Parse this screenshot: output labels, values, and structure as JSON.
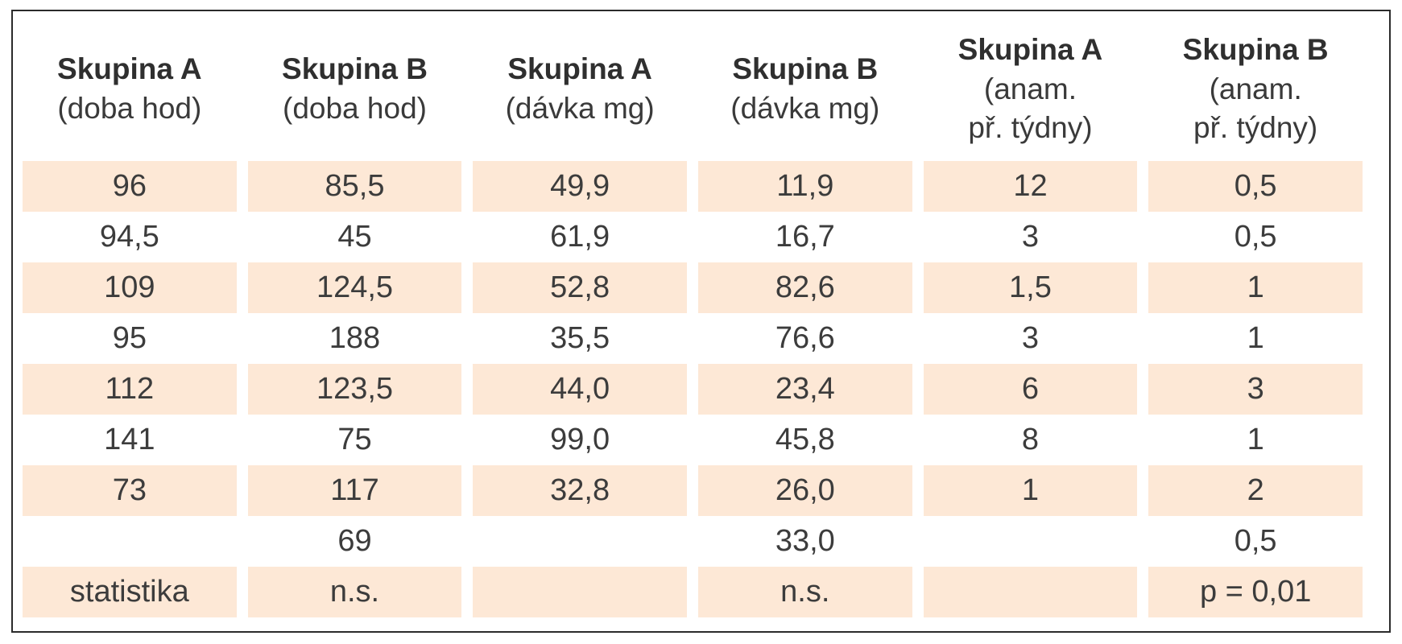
{
  "table": {
    "headers": [
      {
        "title": "Skupina A",
        "sub": [
          "(doba hod)"
        ]
      },
      {
        "title": "Skupina B",
        "sub": [
          "(doba hod)"
        ]
      },
      {
        "title": "Skupina A",
        "sub": [
          "(dávka mg)"
        ]
      },
      {
        "title": "Skupina B",
        "sub": [
          "(dávka mg)"
        ]
      },
      {
        "title": "Skupina A",
        "sub": [
          "(anam.",
          "př. týdny)"
        ]
      },
      {
        "title": "Skupina B",
        "sub": [
          "(anam.",
          "př. týdny)"
        ]
      }
    ],
    "rows": [
      [
        "96",
        "85,5",
        "49,9",
        "11,9",
        "12",
        "0,5"
      ],
      [
        "94,5",
        "45",
        "61,9",
        "16,7",
        "3",
        "0,5"
      ],
      [
        "109",
        "124,5",
        "52,8",
        "82,6",
        "1,5",
        "1"
      ],
      [
        "95",
        "188",
        "35,5",
        "76,6",
        "3",
        "1"
      ],
      [
        "112",
        "123,5",
        "44,0",
        "23,4",
        "6",
        "3"
      ],
      [
        "141",
        "75",
        "99,0",
        "45,8",
        "8",
        "1"
      ],
      [
        "73",
        "117",
        "32,8",
        "26,0",
        "1",
        "2"
      ],
      [
        "",
        "69",
        "",
        "33,0",
        "",
        "0,5"
      ],
      [
        "statistika",
        "n.s.",
        "",
        "n.s.",
        "",
        "p = 0,01"
      ]
    ]
  }
}
